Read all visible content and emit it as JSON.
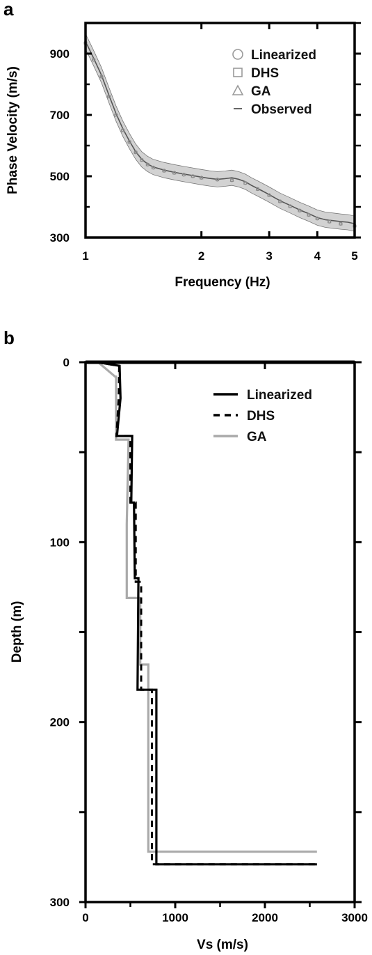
{
  "panels": {
    "a": "a",
    "b": "b"
  },
  "chart_data": [
    {
      "type": "line",
      "panel": "a",
      "xlabel": "Frequency (Hz)",
      "ylabel": "Phase Velocity (m/s)",
      "xscale": "log",
      "xlim": [
        1,
        5
      ],
      "ylim": [
        300,
        1000
      ],
      "xticks": [
        1,
        2,
        3,
        4,
        5
      ],
      "yticks": [
        300,
        500,
        700,
        900
      ],
      "legend_position": "top-right",
      "legend": [
        {
          "label": "Linearized",
          "marker": "circle"
        },
        {
          "label": "DHS",
          "marker": "square"
        },
        {
          "label": "GA",
          "marker": "triangle"
        },
        {
          "label": "Observed",
          "marker": "line"
        }
      ],
      "colors": {
        "band": "#d2d2d2",
        "observed": "#555555",
        "markers": "#8a8a8a"
      },
      "observed": {
        "x": [
          1.0,
          1.05,
          1.1,
          1.15,
          1.2,
          1.25,
          1.3,
          1.35,
          1.4,
          1.45,
          1.5,
          1.6,
          1.7,
          1.8,
          1.9,
          2.0,
          2.1,
          2.2,
          2.3,
          2.4,
          2.5,
          2.6,
          2.7,
          2.8,
          2.9,
          3.0,
          3.2,
          3.4,
          3.6,
          3.8,
          4.0,
          4.2,
          4.4,
          4.6,
          4.8,
          5.0
        ],
        "y": [
          940,
          885,
          830,
          765,
          705,
          655,
          615,
          580,
          555,
          540,
          530,
          520,
          513,
          507,
          502,
          497,
          493,
          490,
          492,
          495,
          490,
          482,
          470,
          460,
          450,
          440,
          420,
          405,
          390,
          378,
          365,
          358,
          355,
          352,
          350,
          345
        ]
      },
      "band_half_width": 25,
      "inverted": {
        "x": [
          1.0,
          1.05,
          1.1,
          1.15,
          1.2,
          1.25,
          1.3,
          1.35,
          1.4,
          1.45,
          1.5,
          1.6,
          1.7,
          1.8,
          1.9,
          2.0,
          2.2,
          2.4,
          2.6,
          2.8,
          3.0,
          3.2,
          3.4,
          3.6,
          3.8,
          4.0,
          4.3,
          4.6,
          5.0
        ],
        "y": [
          935,
          880,
          825,
          760,
          700,
          650,
          612,
          578,
          553,
          538,
          528,
          518,
          511,
          505,
          500,
          495,
          489,
          487,
          478,
          458,
          438,
          418,
          402,
          388,
          374,
          362,
          352,
          345,
          338
        ]
      }
    },
    {
      "type": "line",
      "panel": "b",
      "xlabel": "Vs (m/s)",
      "ylabel": "Depth (m)",
      "xlim": [
        0,
        3000
      ],
      "ylim": [
        0,
        300
      ],
      "y_inverted": true,
      "xticks": [
        0,
        1000,
        2000,
        3000
      ],
      "yticks": [
        0,
        100,
        200,
        300
      ],
      "legend_position": "top-right",
      "series": [
        {
          "name": "Linearized",
          "style": "solid",
          "color": "#000000",
          "vs": [
            130,
            380,
            390,
            350,
            520,
            510,
            540,
            550,
            590,
            580,
            790,
            790,
            2580
          ],
          "depth": [
            0,
            2,
            20,
            41,
            41,
            78,
            78,
            120,
            120,
            182,
            182,
            279,
            279
          ]
        },
        {
          "name": "DHS",
          "style": "dashed",
          "color": "#000000",
          "vs": [
            130,
            375,
            370,
            345,
            500,
            500,
            560,
            560,
            620,
            620,
            740,
            740,
            2580
          ],
          "depth": [
            0,
            2,
            20,
            41,
            41,
            78,
            78,
            122,
            122,
            182,
            182,
            279,
            279
          ]
        },
        {
          "name": "GA",
          "style": "solid",
          "color": "#aaaaaa",
          "vs": [
            140,
            330,
            340,
            340,
            480,
            460,
            460,
            610,
            610,
            700,
            700,
            2580
          ],
          "depth": [
            0,
            8,
            8,
            43,
            43,
            90,
            131,
            131,
            168,
            168,
            272,
            272
          ]
        }
      ]
    }
  ]
}
